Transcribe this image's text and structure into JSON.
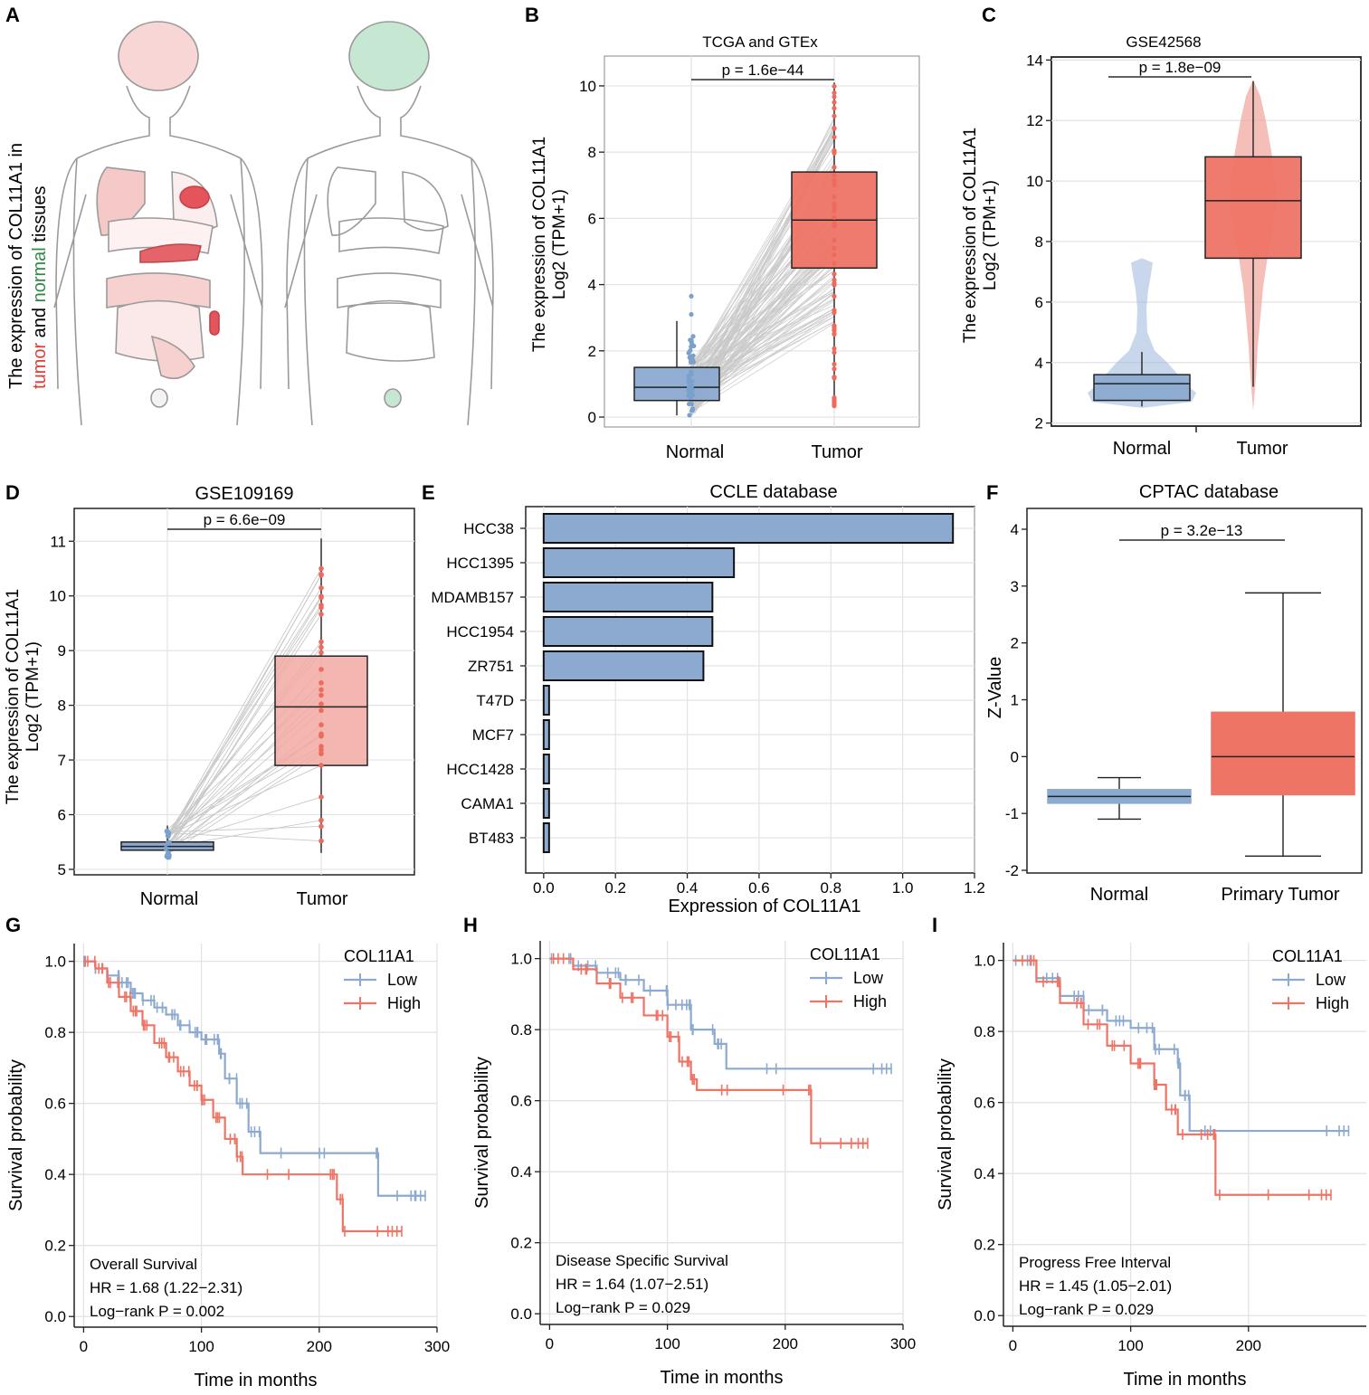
{
  "figure_title": "COL11A1 expression and survival",
  "colors": {
    "normal": "#8caad0",
    "normal_fill": "#9ab6da",
    "tumor": "#ee7466",
    "tumor_light": "#f1a9a2",
    "grid": "#e3e3e3",
    "pair_line": "#c8c8c8",
    "organ_red": "#e4545a",
    "organ_green": "#c6e7d2"
  },
  "panels": {
    "A": {
      "letter": "A",
      "ylabel_prefix": "The expression of COL11A1 in",
      "ylabel_tumor": "tumor",
      "ylabel_and": " and ",
      "ylabel_normal": "normal",
      "ylabel_suffix": " tissues"
    },
    "B": {
      "letter": "B",
      "ylabel1": "The expression of COL11A1",
      "ylabel2": "Log2 (TPM+1)",
      "p_label": "p = 1.6e−44"
    },
    "C": {
      "letter": "C",
      "ylabel1": "The expression of COL11A1",
      "ylabel2": "Log2 (TPM+1)",
      "p_label": "p = 1.8e−09"
    },
    "D": {
      "letter": "D",
      "ylabel1": "The expression of COL11A1",
      "ylabel2": "Log2 (TPM+1)",
      "p_label": "p = 6.6e−09"
    },
    "E": {
      "letter": "E",
      "xlabel": "Expression of COL11A1"
    },
    "F": {
      "letter": "F",
      "ylabel": "Z-Value",
      "p_label": "p = 3.2e−13"
    },
    "G": {
      "letter": "G",
      "ann1": "Overall Survival",
      "ann2": "HR = 1.68 (1.22−2.31)",
      "ann3": "Log−rank P = 0.002"
    },
    "H": {
      "letter": "H",
      "ann1": "Disease Specific Survival",
      "ann2": "HR = 1.64 (1.07−2.51)",
      "ann3": "Log−rank P = 0.029"
    },
    "I": {
      "letter": "I",
      "ann1": "Progress Free Interval",
      "ann2": "HR = 1.45 (1.05−2.01)",
      "ann3": "Log−rank P = 0.029"
    }
  },
  "chart_data": [
    {
      "id": "B",
      "type": "box",
      "title": "TCGA and GTEx",
      "categories": [
        "Normal",
        "Tumor"
      ],
      "ylim": [
        -0.3,
        10.9
      ],
      "yticks": [
        0,
        2,
        4,
        6,
        8,
        10
      ],
      "boxes": [
        {
          "name": "Normal",
          "q1": 0.5,
          "median": 0.9,
          "q3": 1.5,
          "min": 0.05,
          "max": 2.9
        },
        {
          "name": "Tumor",
          "q1": 4.5,
          "median": 5.95,
          "q3": 7.4,
          "min": 0.3,
          "max": 10.1
        }
      ],
      "paired": true
    },
    {
      "id": "C",
      "type": "violin-box",
      "title": "GSE42568",
      "categories": [
        "Normal",
        "Tumor"
      ],
      "ylim": [
        1.9,
        14.1
      ],
      "yticks": [
        2,
        4,
        6,
        8,
        10,
        12,
        14
      ],
      "boxes": [
        {
          "name": "Normal",
          "q1": 2.75,
          "median": 3.3,
          "q3": 3.6,
          "min": 2.55,
          "max": 4.35
        },
        {
          "name": "Tumor",
          "q1": 7.45,
          "median": 9.35,
          "q3": 10.8,
          "min": 3.2,
          "max": 13.3
        }
      ]
    },
    {
      "id": "D",
      "type": "box",
      "title": "GSE109169",
      "categories": [
        "Normal",
        "Tumor"
      ],
      "ylim": [
        4.9,
        11.6
      ],
      "yticks": [
        5,
        6,
        7,
        8,
        9,
        10,
        11
      ],
      "boxes": [
        {
          "name": "Normal",
          "q1": 5.35,
          "median": 5.42,
          "q3": 5.5,
          "min": 5.2,
          "max": 5.8
        },
        {
          "name": "Tumor",
          "q1": 6.9,
          "median": 7.97,
          "q3": 8.9,
          "min": 5.3,
          "max": 11.05
        }
      ],
      "paired": true
    },
    {
      "id": "E",
      "type": "bar",
      "orientation": "horizontal",
      "title": "CCLE database",
      "categories": [
        "HCC38",
        "HCC1395",
        "MDAMB157",
        "HCC1954",
        "ZR751",
        "T47D",
        "MCF7",
        "HCC1428",
        "CAMA1",
        "BT483"
      ],
      "values": [
        1.14,
        0.53,
        0.47,
        0.47,
        0.445,
        0.015,
        0.015,
        0.015,
        0.015,
        0.015
      ],
      "xlabel": "Expression of COL11A1",
      "xlim": [
        -0.05,
        1.2
      ],
      "xticks": [
        0.0,
        0.2,
        0.4,
        0.6,
        0.8,
        1.0,
        1.2
      ]
    },
    {
      "id": "F",
      "type": "box",
      "title": "CPTAC database",
      "categories": [
        "Normal",
        "Primary Tumor"
      ],
      "ylabel": "Z-Value",
      "ylim": [
        -2,
        4.35
      ],
      "yticks": [
        -2,
        -1,
        0,
        1,
        2,
        3,
        4
      ],
      "boxes": [
        {
          "name": "Normal",
          "q1": -0.82,
          "median": -0.7,
          "q3": -0.58,
          "min": -1.1,
          "max": -0.37
        },
        {
          "name": "Primary Tumor",
          "q1": -0.67,
          "median": 0.0,
          "q3": 0.78,
          "min": -1.75,
          "max": 2.88
        }
      ]
    },
    {
      "id": "G",
      "type": "line",
      "subtype": "kaplan-meier",
      "xlabel": "Time in months",
      "ylabel": "Survival probability",
      "legend_title": "COL11A1",
      "xlim": [
        -8,
        300
      ],
      "ylim": [
        -0.03,
        1.05
      ],
      "xticks": [
        0,
        100,
        200,
        300
      ],
      "yticks": [
        0.0,
        0.2,
        0.4,
        0.6,
        0.8,
        1.0
      ],
      "series": [
        {
          "name": "Low",
          "x": [
            0,
            10,
            20,
            30,
            40,
            50,
            60,
            70,
            80,
            90,
            100,
            110,
            115,
            120,
            130,
            140,
            150,
            248,
            250,
            290
          ],
          "y": [
            1.0,
            0.98,
            0.96,
            0.94,
            0.91,
            0.89,
            0.87,
            0.85,
            0.82,
            0.8,
            0.78,
            0.78,
            0.74,
            0.67,
            0.6,
            0.52,
            0.46,
            0.46,
            0.34,
            0.34
          ]
        },
        {
          "name": "High",
          "x": [
            0,
            10,
            20,
            30,
            40,
            50,
            60,
            70,
            80,
            90,
            100,
            110,
            120,
            130,
            135,
            210,
            215,
            220,
            270
          ],
          "y": [
            1.0,
            0.98,
            0.94,
            0.9,
            0.86,
            0.82,
            0.77,
            0.73,
            0.69,
            0.65,
            0.61,
            0.56,
            0.5,
            0.45,
            0.4,
            0.4,
            0.33,
            0.24,
            0.24
          ]
        }
      ]
    },
    {
      "id": "H",
      "type": "line",
      "subtype": "kaplan-meier",
      "xlabel": "Time in months",
      "ylabel": "Survival probability",
      "legend_title": "COL11A1",
      "xlim": [
        -8,
        300
      ],
      "ylim": [
        -0.03,
        1.05
      ],
      "xticks": [
        0,
        100,
        200,
        300
      ],
      "yticks": [
        0.0,
        0.2,
        0.4,
        0.6,
        0.8,
        1.0
      ],
      "series": [
        {
          "name": "Low",
          "x": [
            0,
            20,
            40,
            60,
            80,
            100,
            115,
            120,
            140,
            150,
            290
          ],
          "y": [
            1.0,
            0.98,
            0.96,
            0.94,
            0.91,
            0.87,
            0.87,
            0.8,
            0.76,
            0.69,
            0.69
          ]
        },
        {
          "name": "High",
          "x": [
            0,
            20,
            40,
            60,
            80,
            100,
            110,
            120,
            125,
            220,
            222,
            270
          ],
          "y": [
            1.0,
            0.97,
            0.93,
            0.89,
            0.84,
            0.78,
            0.71,
            0.66,
            0.63,
            0.63,
            0.48,
            0.48
          ]
        }
      ]
    },
    {
      "id": "I",
      "type": "line",
      "subtype": "kaplan-meier",
      "xlabel": "Time in months",
      "ylabel": "Survival probability",
      "legend_title": "COL11A1",
      "xlim": [
        -8,
        300
      ],
      "ylim": [
        -0.03,
        1.05
      ],
      "xticks": [
        0,
        100,
        200
      ],
      "yticks": [
        0.0,
        0.2,
        0.4,
        0.6,
        0.8,
        1.0
      ],
      "series": [
        {
          "name": "Low",
          "x": [
            0,
            20,
            40,
            60,
            80,
            100,
            120,
            140,
            142,
            150,
            285
          ],
          "y": [
            1.0,
            0.95,
            0.9,
            0.86,
            0.83,
            0.81,
            0.75,
            0.71,
            0.62,
            0.52,
            0.52
          ]
        },
        {
          "name": "High",
          "x": [
            0,
            20,
            40,
            60,
            80,
            100,
            120,
            130,
            140,
            170,
            172,
            270
          ],
          "y": [
            1.0,
            0.94,
            0.88,
            0.82,
            0.76,
            0.71,
            0.65,
            0.58,
            0.51,
            0.51,
            0.34,
            0.34
          ]
        }
      ]
    }
  ]
}
